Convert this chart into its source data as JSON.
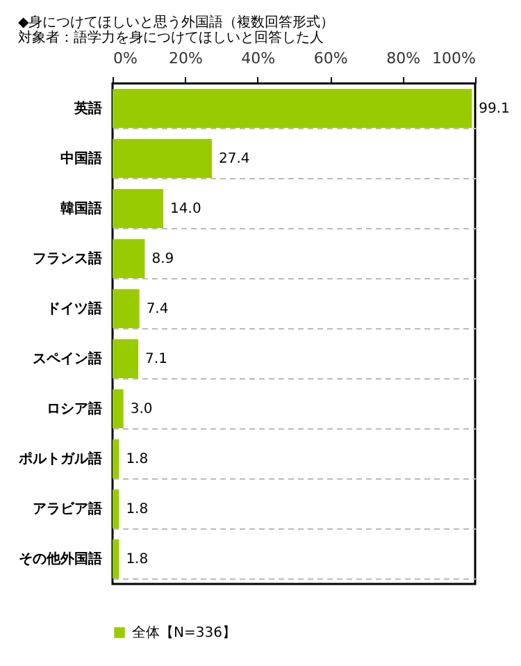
{
  "chart_data": {
    "type": "bar",
    "orientation": "horizontal",
    "title": "◆身につけてほしいと思う外国語（複数回答形式）",
    "subtitle": "対象者：語学力を身につけてほしいと回答した人",
    "categories": [
      "英語",
      "中国語",
      "韓国語",
      "フランス語",
      "ドイツ語",
      "スペイン語",
      "ロシア語",
      "ポルトガル語",
      "アラビア語",
      "その他外国語"
    ],
    "series": [
      {
        "name": "全体【N=336】",
        "color": "#99cc00",
        "values": [
          99.1,
          27.4,
          14.0,
          8.9,
          7.4,
          7.1,
          3.0,
          1.8,
          1.8,
          1.8
        ],
        "value_labels": [
          "99.1",
          "27.4",
          "14.0",
          "8.9",
          "7.4",
          "7.1",
          "3.0",
          "1.8",
          "1.8",
          "1.8"
        ]
      }
    ],
    "xlim": [
      0,
      100
    ],
    "xticks": [
      {
        "value": 0,
        "label": "0%"
      },
      {
        "value": 20,
        "label": "20%"
      },
      {
        "value": 40,
        "label": "40%"
      },
      {
        "value": 60,
        "label": "60%"
      },
      {
        "value": 80,
        "label": "80%"
      },
      {
        "value": 100,
        "label": "100%"
      }
    ],
    "grid": "y",
    "legend": "bottom"
  }
}
